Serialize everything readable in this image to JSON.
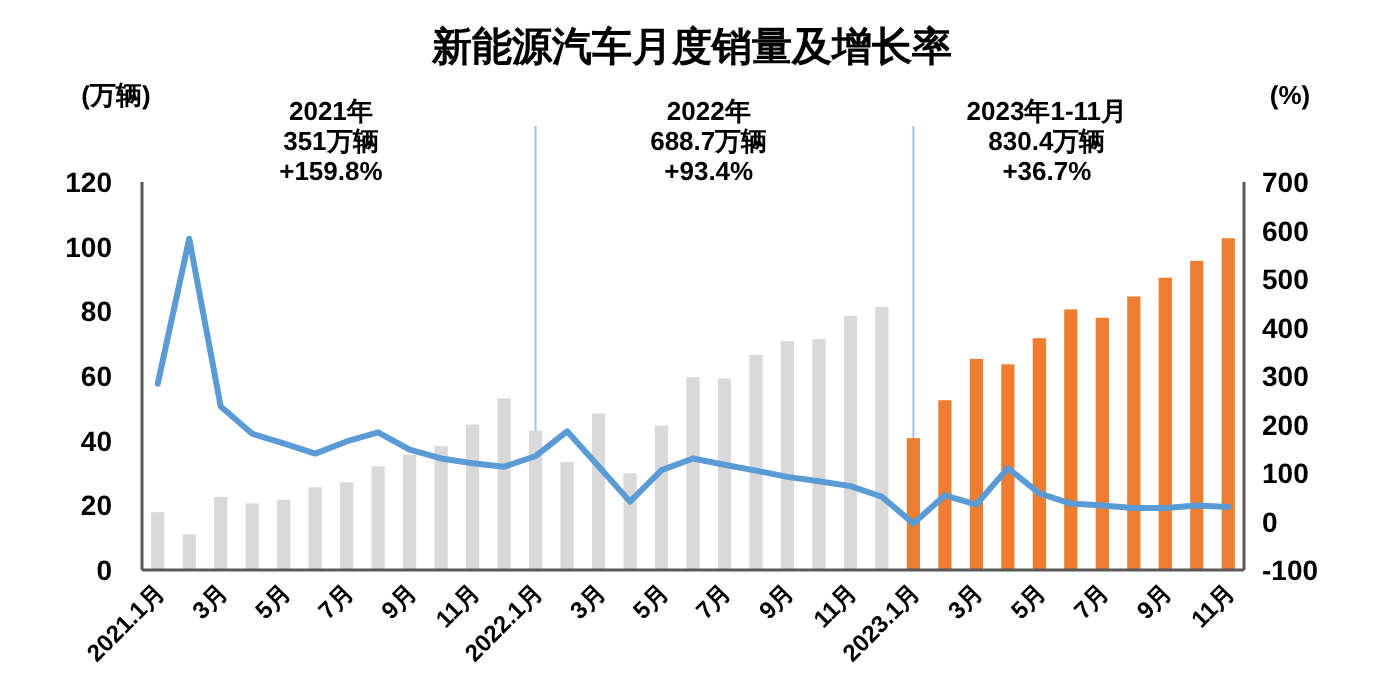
{
  "chart_data": {
    "type": "bar",
    "title": "新能源汽车月度销量及增长率",
    "ylabel": "(万辆)",
    "y2label": "(%)",
    "categories": [
      "2021.1月",
      null,
      "3月",
      null,
      "5月",
      null,
      "7月",
      null,
      "9月",
      null,
      "11月",
      null,
      "2022.1月",
      null,
      "3月",
      null,
      "5月",
      null,
      "7月",
      null,
      "9月",
      null,
      "11月",
      null,
      "2023.1月",
      null,
      "3月",
      null,
      "5月",
      null,
      "7月",
      null,
      "9月",
      null,
      "11月"
    ],
    "series": [
      {
        "colors": [
          "#d9d9d9",
          "#d9d9d9",
          "#d9d9d9",
          "#d9d9d9",
          "#d9d9d9",
          "#d9d9d9",
          "#d9d9d9",
          "#d9d9d9",
          "#d9d9d9",
          "#d9d9d9",
          "#d9d9d9",
          "#d9d9d9",
          "#d9d9d9",
          "#d9d9d9",
          "#d9d9d9",
          "#d9d9d9",
          "#d9d9d9",
          "#d9d9d9",
          "#d9d9d9",
          "#d9d9d9",
          "#d9d9d9",
          "#d9d9d9",
          "#d9d9d9",
          "#d9d9d9",
          "#ed7d31",
          "#ed7d31",
          "#ed7d31",
          "#ed7d31",
          "#ed7d31",
          "#ed7d31",
          "#ed7d31",
          "#ed7d31",
          "#ed7d31",
          "#ed7d31",
          "#ed7d31"
        ],
        "values": [
          17.9,
          11,
          22.6,
          20.6,
          21.7,
          25.6,
          27.1,
          32.1,
          35.7,
          38.3,
          45,
          53.1,
          43.1,
          33.4,
          48.4,
          29.9,
          44.7,
          59.6,
          59.3,
          66.6,
          70.8,
          71.4,
          78.6,
          81.4,
          40.8,
          52.5,
          65.3,
          63.6,
          71.7,
          80.6,
          78,
          84.6,
          90.4,
          95.6,
          102.6
        ]
      },
      {
        "type": "line",
        "axis": "y2",
        "color": "#5b9bd5",
        "values": [
          284,
          583,
          237,
          181,
          161,
          140,
          165,
          184,
          148,
          130,
          120,
          113,
          135,
          186,
          114,
          41,
          106,
          130,
          117,
          105,
          92,
          83,
          73,
          51,
          -4,
          54,
          35,
          110,
          58,
          37,
          33,
          28,
          28,
          33,
          30
        ]
      }
    ],
    "ylim": [
      0,
      120
    ],
    "yticks": [
      0,
      20,
      40,
      60,
      80,
      100,
      120
    ],
    "y2lim": [
      -100,
      700
    ],
    "y2ticks": [
      -100,
      0,
      100,
      200,
      300,
      400,
      500,
      600,
      700
    ],
    "ref_lines": [
      {
        "axis": "x",
        "value": "2022.1月",
        "color": "#9dc3e6"
      },
      {
        "axis": "x",
        "value": "2023.1月",
        "color": "#9dc3e6"
      }
    ],
    "annotations": [
      "2021年\n351万辆\n+159.8%",
      "2022年\n688.7万辆\n+93.4%",
      "2023年1-11月\n830.4万辆\n+36.7%"
    ],
    "grid": false
  }
}
